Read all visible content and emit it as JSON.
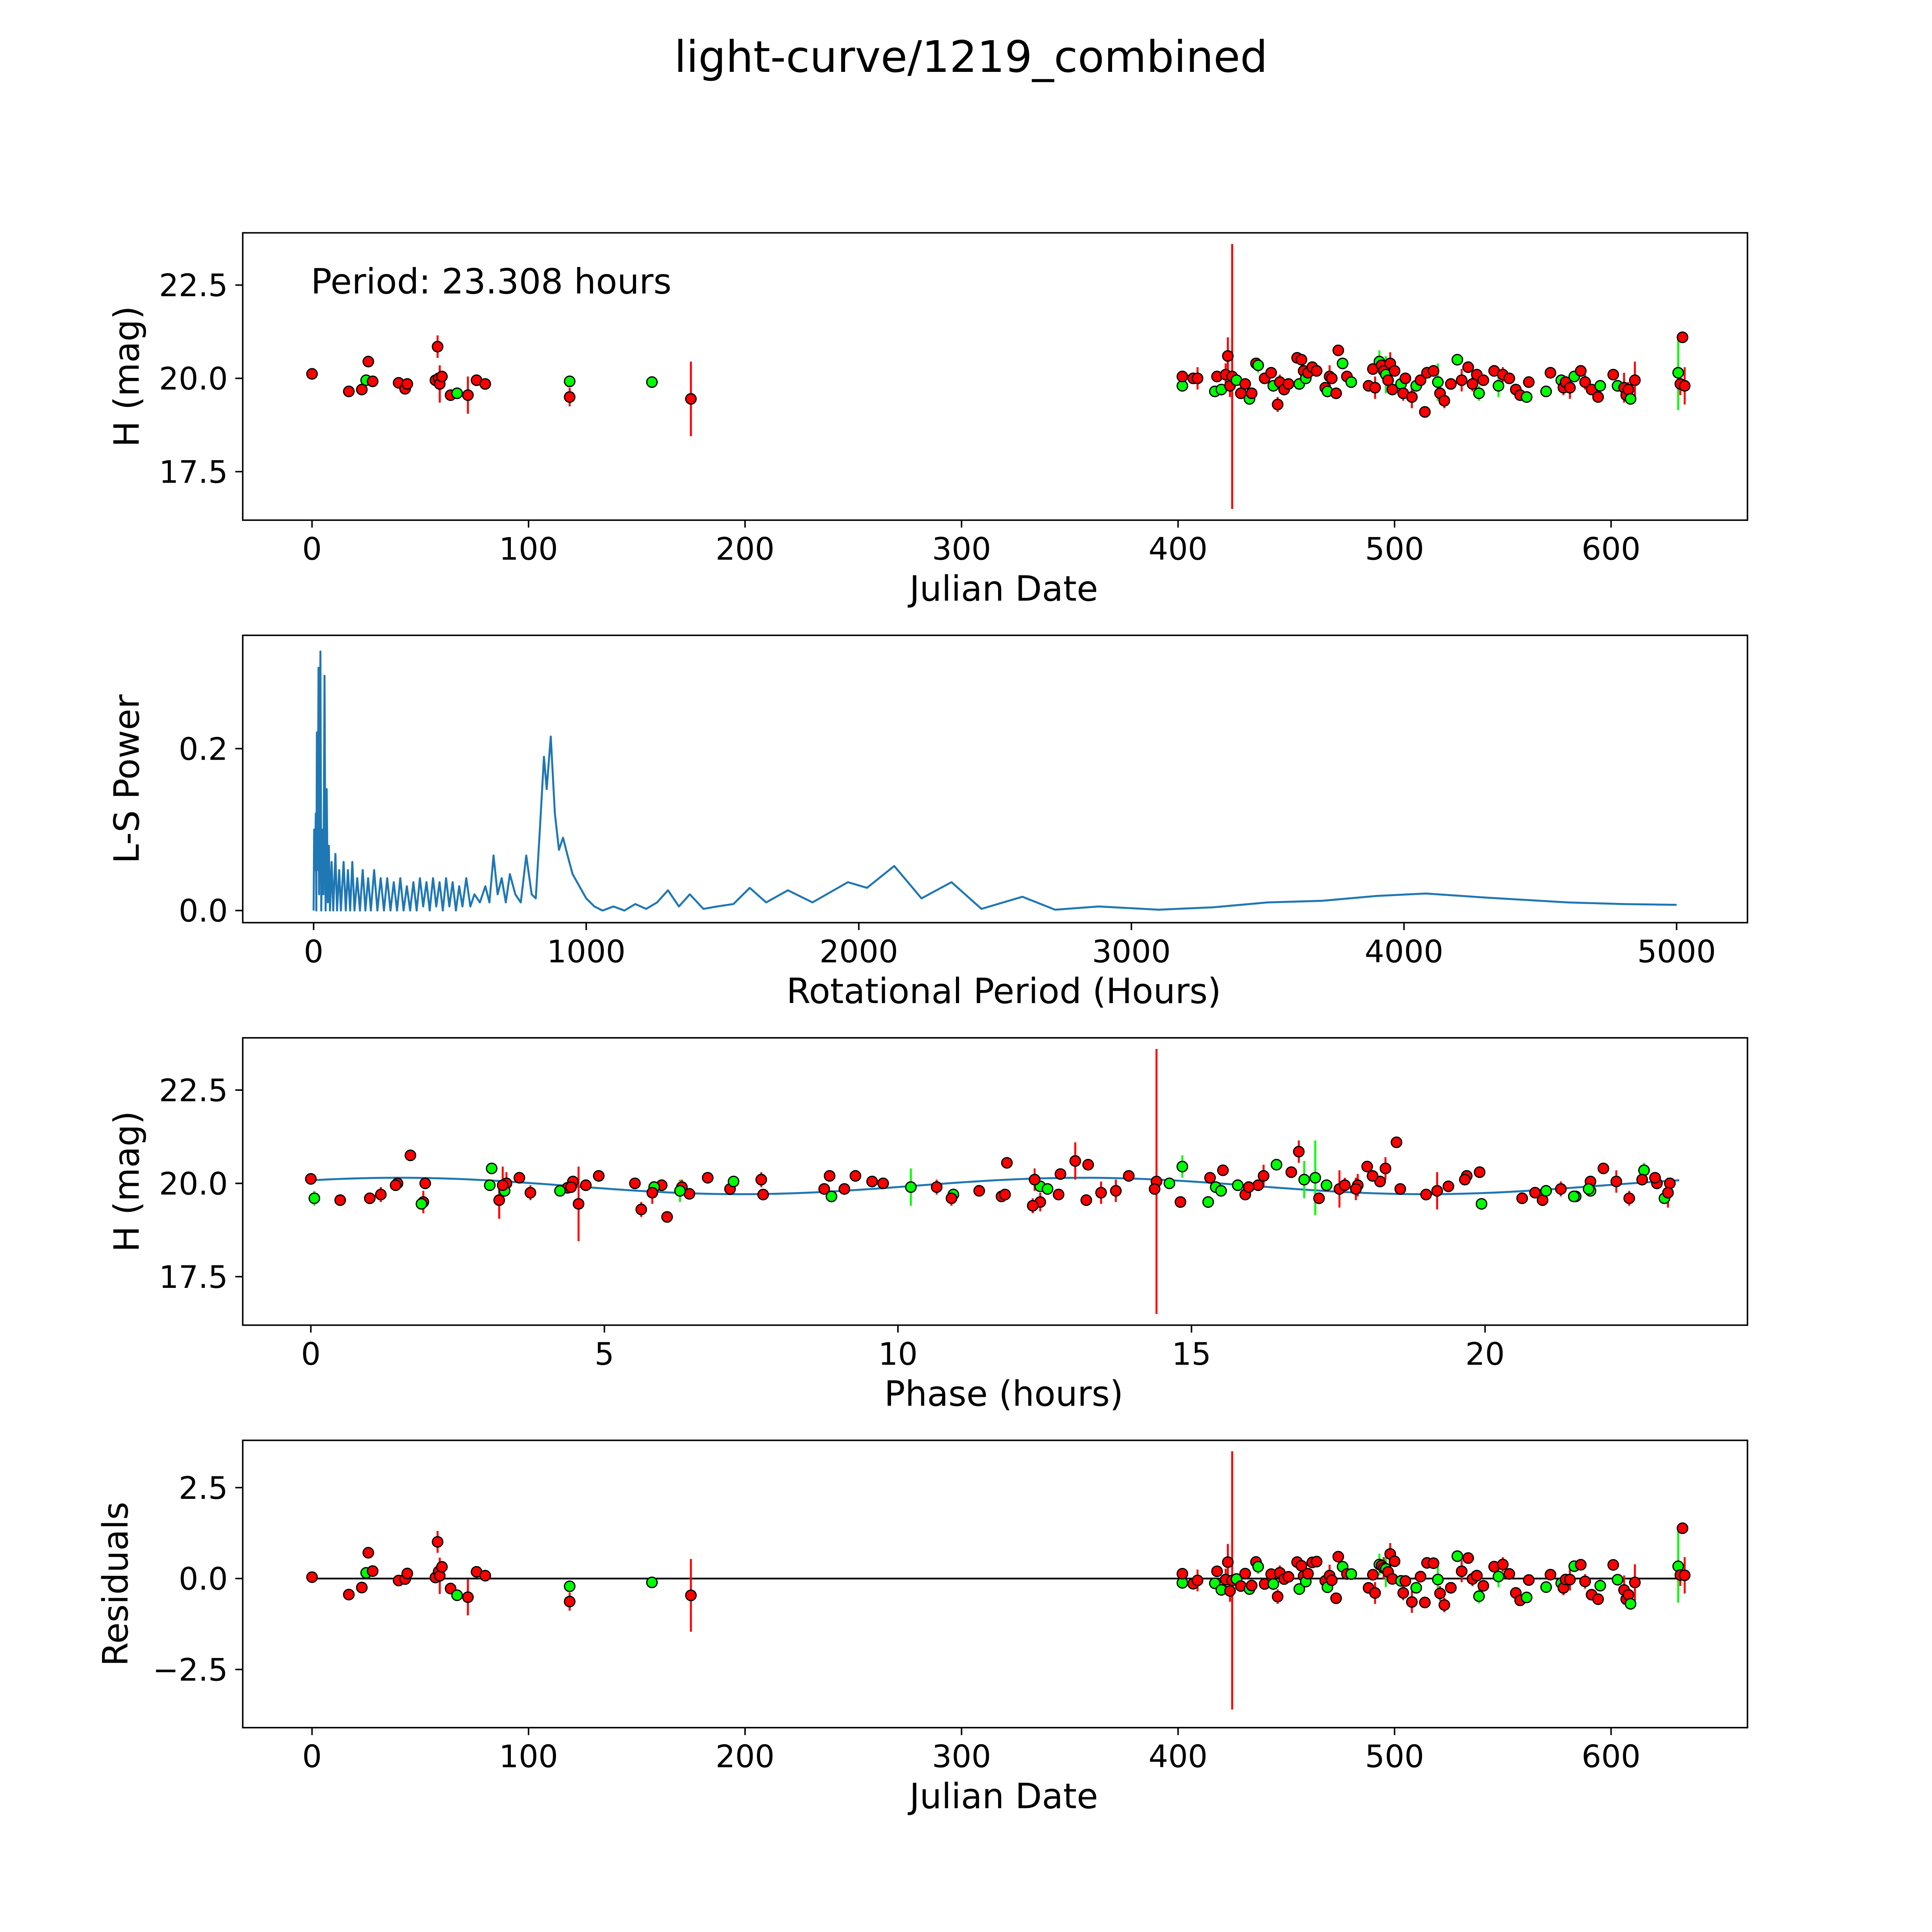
{
  "title": "light-curve/1219_combined",
  "colors": {
    "g": "#00ff00",
    "r": "#ff0000",
    "line": "#1f77b4",
    "edge": "#000000"
  },
  "chart_data": [
    {
      "type": "scatter",
      "xlabel": "Julian Date",
      "ylabel": "H (mag)",
      "annotation": "Period: 23.308 hours",
      "xlim": [
        -32,
        663
      ],
      "ylim": [
        16.2,
        23.9
      ],
      "xticks": [
        "0",
        "100",
        "200",
        "300",
        "400",
        "500",
        "600"
      ],
      "xtick_values": [
        0,
        100,
        200,
        300,
        400,
        500,
        600
      ],
      "yticks": [
        "17.5",
        "20.0",
        "22.5"
      ],
      "ytick_values": [
        17.5,
        20.0,
        22.5
      ]
    },
    {
      "type": "line",
      "xlabel": "Rotational Period (Hours)",
      "ylabel": "L-S Power",
      "xlim": [
        -260,
        5260
      ],
      "ylim": [
        -0.015,
        0.34
      ],
      "xticks": [
        "0",
        "1000",
        "2000",
        "3000",
        "4000",
        "5000"
      ],
      "xtick_values": [
        0,
        1000,
        2000,
        3000,
        4000,
        5000
      ],
      "yticks": [
        "0.0",
        "0.2"
      ],
      "ytick_values": [
        0.0,
        0.2
      ],
      "series": [
        [
          0,
          0
        ],
        [
          2,
          0.1
        ],
        [
          5,
          0.05
        ],
        [
          8,
          0.12
        ],
        [
          10,
          0
        ],
        [
          12,
          0.22
        ],
        [
          15,
          0.05
        ],
        [
          18,
          0.3
        ],
        [
          20,
          0.02
        ],
        [
          25,
          0.32
        ],
        [
          28,
          0
        ],
        [
          32,
          0.1
        ],
        [
          36,
          0.02
        ],
        [
          40,
          0.29
        ],
        [
          44,
          0
        ],
        [
          48,
          0.15
        ],
        [
          52,
          0.01
        ],
        [
          56,
          0.08
        ],
        [
          60,
          0
        ],
        [
          66,
          0.06
        ],
        [
          72,
          0
        ],
        [
          80,
          0.07
        ],
        [
          86,
          0
        ],
        [
          94,
          0.05
        ],
        [
          100,
          0
        ],
        [
          110,
          0.06
        ],
        [
          118,
          0
        ],
        [
          126,
          0.05
        ],
        [
          134,
          0
        ],
        [
          142,
          0.06
        ],
        [
          150,
          0
        ],
        [
          160,
          0.04
        ],
        [
          170,
          0
        ],
        [
          180,
          0.05
        ],
        [
          190,
          0
        ],
        [
          200,
          0.04
        ],
        [
          210,
          0
        ],
        [
          222,
          0.05
        ],
        [
          234,
          0
        ],
        [
          246,
          0.04
        ],
        [
          258,
          0
        ],
        [
          270,
          0.04
        ],
        [
          282,
          0
        ],
        [
          294,
          0.035
        ],
        [
          306,
          0
        ],
        [
          318,
          0.04
        ],
        [
          330,
          0
        ],
        [
          342,
          0.03
        ],
        [
          354,
          0
        ],
        [
          366,
          0.035
        ],
        [
          378,
          0
        ],
        [
          390,
          0.04
        ],
        [
          402,
          0.005
        ],
        [
          414,
          0.035
        ],
        [
          426,
          0
        ],
        [
          438,
          0.04
        ],
        [
          450,
          0.005
        ],
        [
          462,
          0.035
        ],
        [
          474,
          0
        ],
        [
          486,
          0.04
        ],
        [
          498,
          0.005
        ],
        [
          510,
          0.035
        ],
        [
          522,
          0
        ],
        [
          534,
          0.03
        ],
        [
          546,
          0.005
        ],
        [
          560,
          0.04
        ],
        [
          575,
          0.005
        ],
        [
          590,
          0.02
        ],
        [
          610,
          0.01
        ],
        [
          630,
          0.03
        ],
        [
          645,
          0.01
        ],
        [
          660,
          0.068
        ],
        [
          675,
          0.02
        ],
        [
          690,
          0.04
        ],
        [
          705,
          0.01
        ],
        [
          720,
          0.045
        ],
        [
          740,
          0.02
        ],
        [
          760,
          0.01
        ],
        [
          780,
          0.068
        ],
        [
          800,
          0.02
        ],
        [
          815,
          0.015
        ],
        [
          830,
          0.1
        ],
        [
          845,
          0.19
        ],
        [
          855,
          0.15
        ],
        [
          870,
          0.215
        ],
        [
          885,
          0.12
        ],
        [
          900,
          0.075
        ],
        [
          915,
          0.09
        ],
        [
          930,
          0.07
        ],
        [
          950,
          0.045
        ],
        [
          975,
          0.03
        ],
        [
          1000,
          0.015
        ],
        [
          1030,
          0.005
        ],
        [
          1060,
          0
        ],
        [
          1100,
          0.005
        ],
        [
          1140,
          0
        ],
        [
          1180,
          0.008
        ],
        [
          1220,
          0.002
        ],
        [
          1260,
          0.01
        ],
        [
          1300,
          0.025
        ],
        [
          1340,
          0.005
        ],
        [
          1380,
          0.02
        ],
        [
          1430,
          0.002
        ],
        [
          1480,
          0.005
        ],
        [
          1540,
          0.008
        ],
        [
          1600,
          0.028
        ],
        [
          1660,
          0.01
        ],
        [
          1740,
          0.025
        ],
        [
          1830,
          0.01
        ],
        [
          1960,
          0.035
        ],
        [
          2030,
          0.028
        ],
        [
          2130,
          0.055
        ],
        [
          2230,
          0.015
        ],
        [
          2340,
          0.035
        ],
        [
          2450,
          0.002
        ],
        [
          2600,
          0.017
        ],
        [
          2720,
          0.001
        ],
        [
          2880,
          0.005
        ],
        [
          3100,
          0.001
        ],
        [
          3300,
          0.004
        ],
        [
          3500,
          0.01
        ],
        [
          3700,
          0.012
        ],
        [
          3900,
          0.018
        ],
        [
          4080,
          0.021
        ],
        [
          4300,
          0.016
        ],
        [
          4600,
          0.01
        ],
        [
          4800,
          0.008
        ],
        [
          5000,
          0.007
        ]
      ]
    },
    {
      "type": "scatter",
      "xlabel": "Phase (hours)",
      "ylabel": "H (mag)",
      "xlim": [
        -1.16,
        24.47
      ],
      "ylim": [
        16.2,
        23.9
      ],
      "xticks": [
        "0",
        "5",
        "10",
        "15",
        "20"
      ],
      "xtick_values": [
        0,
        5,
        10,
        15,
        20
      ],
      "yticks": [
        "17.5",
        "20.0",
        "22.5"
      ],
      "ytick_values": [
        17.5,
        20.0,
        22.5
      ],
      "period_hours": 23.308,
      "model": {
        "mean": 19.93,
        "amp": 0.22,
        "harmonic": 2,
        "phase0": 1.5
      }
    },
    {
      "type": "scatter",
      "xlabel": "Julian Date",
      "ylabel": "Residuals",
      "xlim": [
        -32,
        663
      ],
      "ylim": [
        -4.1,
        3.8
      ],
      "xticks": [
        "0",
        "100",
        "200",
        "300",
        "400",
        "500",
        "600"
      ],
      "xtick_values": [
        0,
        100,
        200,
        300,
        400,
        500,
        600
      ],
      "yticks": [
        "−2.5",
        "0.0",
        "2.5"
      ],
      "ytick_values": [
        -2.5,
        0.0,
        2.5
      ]
    }
  ],
  "observations": [
    [
      0,
      20.12,
      0.05,
      "r"
    ],
    [
      17,
      19.65,
      0.05,
      "r"
    ],
    [
      23,
      19.7,
      0.08,
      "r"
    ],
    [
      25,
      19.95,
      0.05,
      "g"
    ],
    [
      26,
      20.45,
      0.05,
      "r"
    ],
    [
      28,
      19.92,
      0.05,
      "r"
    ],
    [
      40,
      19.88,
      0.05,
      "r"
    ],
    [
      43,
      19.72,
      0.1,
      "r"
    ],
    [
      44,
      19.85,
      0.05,
      "r"
    ],
    [
      57,
      19.95,
      0.05,
      "r"
    ],
    [
      58,
      20.85,
      0.3,
      "r"
    ],
    [
      58.5,
      20.0,
      0.05,
      "r"
    ],
    [
      59,
      19.85,
      0.5,
      "r"
    ],
    [
      60,
      20.05,
      0.05,
      "r"
    ],
    [
      64,
      19.55,
      0.05,
      "r"
    ],
    [
      67,
      19.6,
      0.05,
      "g"
    ],
    [
      72,
      19.55,
      0.5,
      "r"
    ],
    [
      76,
      19.95,
      0.05,
      "r"
    ],
    [
      80,
      19.85,
      0.05,
      "r"
    ],
    [
      119,
      19.92,
      0.05,
      "g"
    ],
    [
      119,
      19.5,
      0.25,
      "r"
    ],
    [
      157,
      19.9,
      0.05,
      "g"
    ],
    [
      175,
      19.45,
      1.0,
      "r"
    ],
    [
      402,
      19.8,
      0.05,
      "g"
    ],
    [
      402,
      20.05,
      0.05,
      "r"
    ],
    [
      407,
      20.0,
      0.1,
      "r"
    ],
    [
      409,
      20.0,
      0.3,
      "r"
    ],
    [
      417,
      19.65,
      0.1,
      "g"
    ],
    [
      418,
      20.05,
      0.1,
      "r"
    ],
    [
      420,
      19.7,
      0.05,
      "g"
    ],
    [
      422,
      20.1,
      0.3,
      "r"
    ],
    [
      423,
      20.6,
      0.5,
      "r"
    ],
    [
      424,
      19.8,
      0.3,
      "r"
    ],
    [
      425,
      20.05,
      3.55,
      "r"
    ],
    [
      427,
      19.95,
      0.1,
      "g"
    ],
    [
      429,
      19.6,
      0.1,
      "r"
    ],
    [
      431,
      19.85,
      0.05,
      "r"
    ],
    [
      433,
      19.45,
      0.05,
      "g"
    ],
    [
      434,
      19.6,
      0.05,
      "r"
    ],
    [
      436,
      20.4,
      0.1,
      "r"
    ],
    [
      437,
      20.35,
      0.2,
      "g"
    ],
    [
      440,
      20.0,
      0.05,
      "r"
    ],
    [
      443,
      20.15,
      0.05,
      "r"
    ],
    [
      444,
      19.8,
      0.05,
      "g"
    ],
    [
      446,
      19.3,
      0.2,
      "r"
    ],
    [
      447,
      19.9,
      0.2,
      "r"
    ],
    [
      449,
      19.7,
      0.1,
      "r"
    ],
    [
      451,
      19.85,
      0.05,
      "r"
    ],
    [
      455,
      20.55,
      0.05,
      "r"
    ],
    [
      456,
      19.85,
      0.05,
      "g"
    ],
    [
      457,
      20.5,
      0.1,
      "r"
    ],
    [
      458,
      20.2,
      0.05,
      "r"
    ],
    [
      459,
      20.0,
      0.1,
      "g"
    ],
    [
      460,
      20.15,
      0.1,
      "r"
    ],
    [
      462,
      20.3,
      0.05,
      "r"
    ],
    [
      464,
      20.2,
      0.1,
      "r"
    ],
    [
      468,
      19.75,
      0.05,
      "r"
    ],
    [
      469,
      19.65,
      0.1,
      "g"
    ],
    [
      470,
      20.05,
      0.3,
      "r"
    ],
    [
      471,
      20.0,
      0.1,
      "r"
    ],
    [
      473,
      19.6,
      0.05,
      "r"
    ],
    [
      474,
      20.75,
      0.05,
      "r"
    ],
    [
      476,
      20.4,
      0.1,
      "g"
    ],
    [
      478,
      20.05,
      0.1,
      "r"
    ],
    [
      480,
      19.9,
      0.05,
      "g"
    ],
    [
      488,
      19.8,
      0.05,
      "r"
    ],
    [
      490,
      20.25,
      0.1,
      "r"
    ],
    [
      491,
      19.75,
      0.3,
      "r"
    ],
    [
      493,
      20.45,
      0.3,
      "g"
    ],
    [
      494,
      20.35,
      0.05,
      "r"
    ],
    [
      495,
      20.2,
      0.3,
      "r"
    ],
    [
      496,
      20.1,
      0.5,
      "g"
    ],
    [
      497,
      19.95,
      0.2,
      "r"
    ],
    [
      498,
      20.4,
      0.3,
      "r"
    ],
    [
      499,
      19.7,
      0.1,
      "r"
    ],
    [
      500,
      20.2,
      0.1,
      "r"
    ],
    [
      503,
      19.85,
      0.05,
      "g"
    ],
    [
      504,
      19.6,
      0.2,
      "r"
    ],
    [
      505,
      20.0,
      0.1,
      "r"
    ],
    [
      508,
      19.5,
      0.3,
      "r"
    ],
    [
      510,
      19.8,
      0.05,
      "g"
    ],
    [
      512,
      19.95,
      0.05,
      "r"
    ],
    [
      514,
      19.1,
      0.1,
      "r"
    ],
    [
      515,
      20.15,
      0.05,
      "r"
    ],
    [
      518,
      20.2,
      0.1,
      "r"
    ],
    [
      520,
      19.9,
      0.5,
      "g"
    ],
    [
      521,
      19.6,
      0.2,
      "r"
    ],
    [
      523,
      19.4,
      0.2,
      "r"
    ],
    [
      526,
      19.85,
      0.1,
      "r"
    ],
    [
      529,
      20.5,
      0.05,
      "g"
    ],
    [
      531,
      19.95,
      0.3,
      "r"
    ],
    [
      534,
      20.3,
      0.1,
      "r"
    ],
    [
      536,
      19.85,
      0.2,
      "r"
    ],
    [
      538,
      20.1,
      0.1,
      "r"
    ],
    [
      539,
      19.6,
      0.2,
      "g"
    ],
    [
      541,
      19.95,
      0.1,
      "r"
    ],
    [
      546,
      20.2,
      0.1,
      "r"
    ],
    [
      548,
      19.8,
      0.3,
      "g"
    ],
    [
      550,
      20.1,
      0.2,
      "r"
    ],
    [
      553,
      20.0,
      0.05,
      "r"
    ],
    [
      556,
      19.7,
      0.1,
      "r"
    ],
    [
      558,
      19.55,
      0.05,
      "r"
    ],
    [
      561,
      19.5,
      0.1,
      "g"
    ],
    [
      562,
      19.9,
      0.1,
      "r"
    ],
    [
      570,
      19.65,
      0.05,
      "g"
    ],
    [
      572,
      20.15,
      0.05,
      "r"
    ],
    [
      577,
      19.95,
      0.05,
      "g"
    ],
    [
      578,
      19.75,
      0.2,
      "r"
    ],
    [
      579,
      19.9,
      0.1,
      "r"
    ],
    [
      581,
      19.75,
      0.3,
      "r"
    ],
    [
      583,
      20.05,
      0.1,
      "g"
    ],
    [
      586,
      20.2,
      0.05,
      "r"
    ],
    [
      588,
      19.9,
      0.2,
      "r"
    ],
    [
      591,
      19.7,
      0.05,
      "r"
    ],
    [
      594,
      19.5,
      0.05,
      "r"
    ],
    [
      595,
      19.8,
      0.1,
      "g"
    ],
    [
      601,
      20.1,
      0.1,
      "r"
    ],
    [
      603,
      19.8,
      0.1,
      "g"
    ],
    [
      606,
      19.75,
      0.4,
      "r"
    ],
    [
      607,
      19.55,
      0.1,
      "r"
    ],
    [
      608,
      19.7,
      0.2,
      "r"
    ],
    [
      609,
      19.45,
      0.1,
      "g"
    ],
    [
      611,
      19.95,
      0.5,
      "r"
    ],
    [
      631,
      20.15,
      1.0,
      "g"
    ],
    [
      632,
      19.85,
      0.3,
      "r"
    ],
    [
      633,
      21.1,
      0.05,
      "r"
    ],
    [
      634,
      19.8,
      0.5,
      "r"
    ]
  ]
}
